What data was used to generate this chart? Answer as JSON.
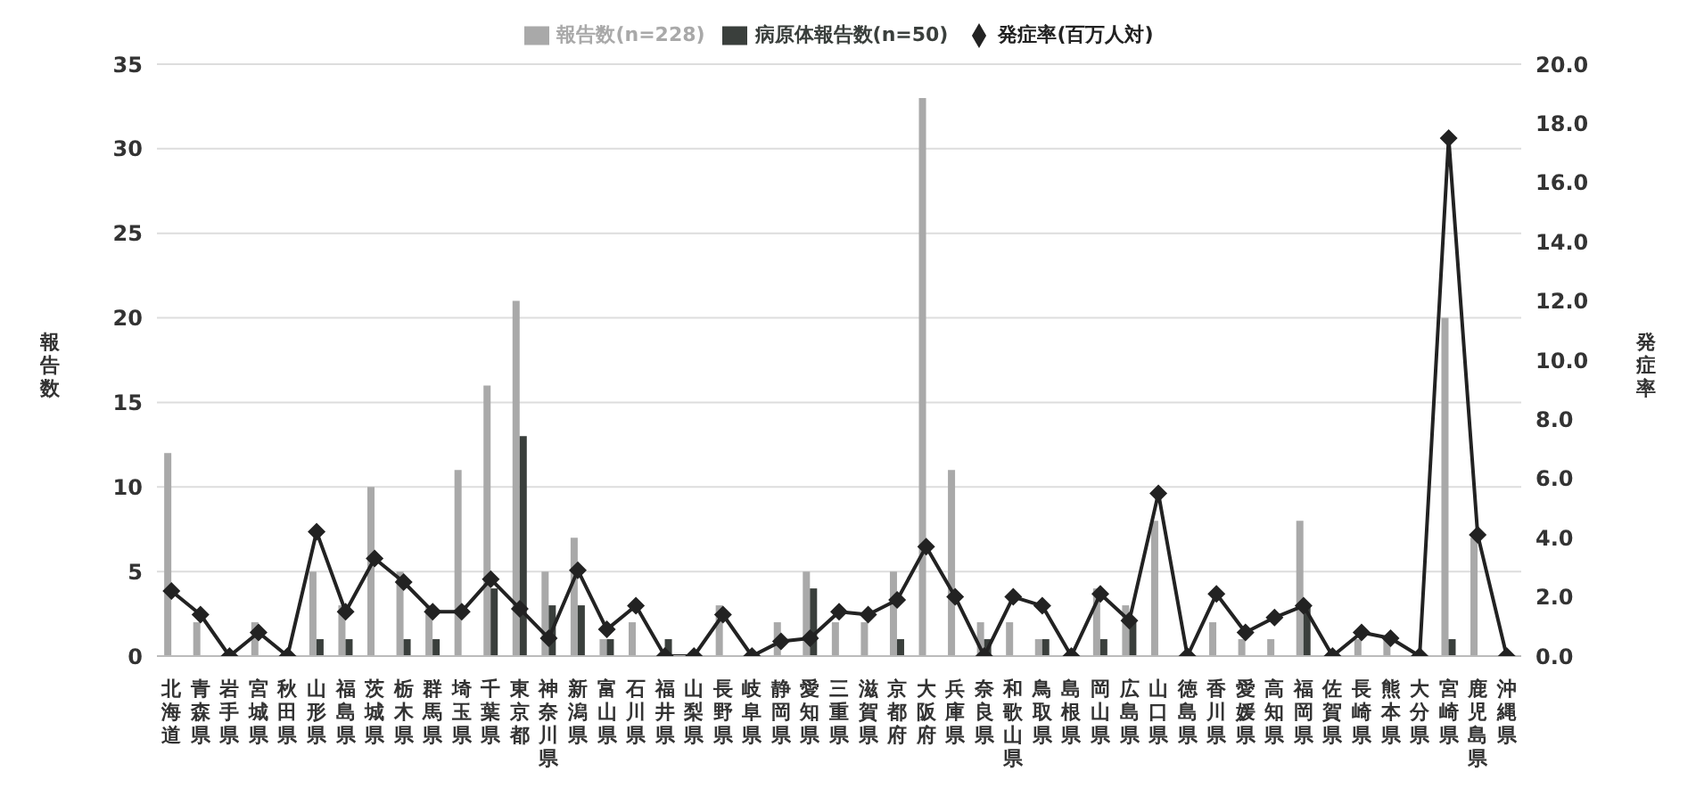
{
  "chart_data": {
    "type": "bar",
    "categories": [
      "北海道",
      "青森県",
      "岩手県",
      "宮城県",
      "秋田県",
      "山形県",
      "福島県",
      "茨城県",
      "栃木県",
      "群馬県",
      "埼玉県",
      "千葉県",
      "東京都",
      "神奈川県",
      "新潟県",
      "富山県",
      "石川県",
      "福井県",
      "山梨県",
      "長野県",
      "岐阜県",
      "静岡県",
      "愛知県",
      "三重県",
      "滋賀県",
      "京都府",
      "大阪府",
      "兵庫県",
      "奈良県",
      "和歌山県",
      "鳥取県",
      "島根県",
      "岡山県",
      "広島県",
      "山口県",
      "徳島県",
      "香川県",
      "愛媛県",
      "高知県",
      "福岡県",
      "佐賀県",
      "長崎県",
      "熊本県",
      "大分県",
      "宮崎県",
      "鹿児島県",
      "沖縄県"
    ],
    "series": [
      {
        "name": "報告数(n=228)",
        "color": "#a9a9a9",
        "values": [
          12,
          2,
          0,
          2,
          0,
          5,
          3,
          10,
          5,
          3,
          11,
          16,
          21,
          5,
          7,
          1,
          2,
          0,
          0,
          3,
          0,
          2,
          5,
          2,
          2,
          5,
          33,
          11,
          2,
          2,
          1,
          0,
          4,
          3,
          8,
          0,
          2,
          1,
          1,
          8,
          0,
          1,
          1,
          0,
          20,
          7,
          0
        ]
      },
      {
        "name": "病原体報告数(n=50)",
        "color": "#3a3f3c",
        "values": [
          0,
          0,
          0,
          0,
          0,
          1,
          1,
          0,
          1,
          1,
          0,
          4,
          13,
          3,
          3,
          1,
          0,
          1,
          0,
          0,
          0,
          0,
          4,
          0,
          0,
          1,
          0,
          0,
          1,
          0,
          1,
          0,
          1,
          2,
          0,
          0,
          0,
          0,
          0,
          3,
          0,
          0,
          0,
          0,
          1,
          0,
          0
        ]
      },
      {
        "name": "発症率(百万人対)",
        "type": "line",
        "axis": "y2",
        "color": "#222222",
        "values": [
          2.2,
          1.4,
          0,
          0.8,
          0,
          4.2,
          1.5,
          3.3,
          2.5,
          1.5,
          1.5,
          2.6,
          1.6,
          0.6,
          2.9,
          0.9,
          1.7,
          0,
          0,
          1.4,
          0,
          0.5,
          0.6,
          1.5,
          1.4,
          1.9,
          3.7,
          2.0,
          0,
          2.0,
          1.7,
          0,
          2.1,
          1.2,
          5.5,
          0,
          2.1,
          0.8,
          1.3,
          1.7,
          0,
          0.8,
          0.6,
          0,
          17.5,
          4.1,
          0
        ]
      }
    ],
    "ylabel": "報告数",
    "y2label": "発症率",
    "ylim": [
      0,
      35
    ],
    "yticks": [
      0,
      5,
      10,
      15,
      20,
      25,
      30,
      35
    ],
    "y2lim": [
      0,
      20
    ],
    "y2ticks": [
      {
        "value": 0,
        "label": "0.0"
      },
      {
        "value": 2,
        "label": "2.0"
      },
      {
        "value": 4,
        "label": "4.0"
      },
      {
        "value": 6,
        "label": "6.0"
      },
      {
        "value": 8,
        "label": "8.0"
      },
      {
        "value": 10,
        "label": "10.0"
      },
      {
        "value": 12,
        "label": "12.0"
      },
      {
        "value": 14,
        "label": "14.0"
      },
      {
        "value": 16,
        "label": "16.0"
      },
      {
        "value": 18,
        "label": "18.0"
      },
      {
        "value": 20,
        "label": "20.0"
      }
    ],
    "grid": "y",
    "legend": "top",
    "marker": "diamond",
    "line_style": "solid"
  }
}
